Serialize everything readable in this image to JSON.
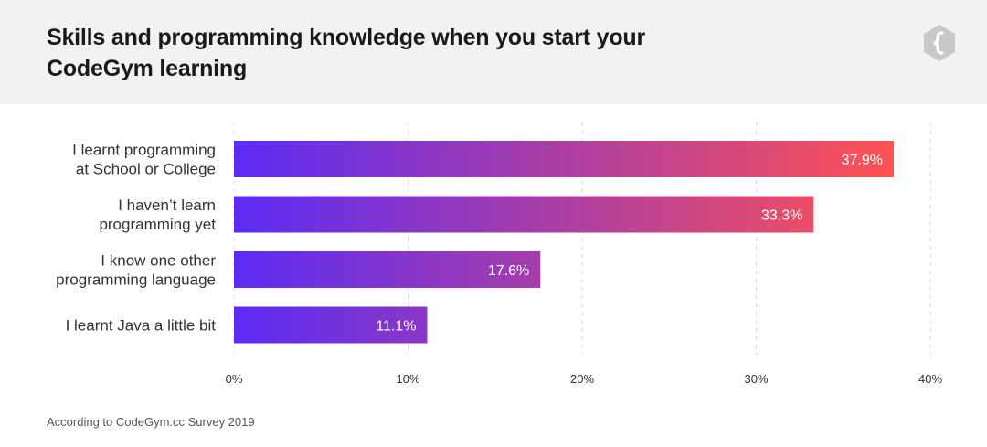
{
  "header": {
    "title": "Skills and programming knowledge when you start your CodeGym learning",
    "logo_icon": "codegym-brace-logo-icon"
  },
  "chart_data": {
    "type": "bar",
    "orientation": "horizontal",
    "categories": [
      [
        "I learnt programming",
        "at School or College"
      ],
      [
        "I haven’t learn",
        "programming yet"
      ],
      [
        "I know one other",
        "programming language"
      ],
      [
        "I learnt Java a little bit"
      ]
    ],
    "values": [
      37.9,
      33.3,
      17.6,
      11.1
    ],
    "value_labels": [
      "37.9%",
      "33.3%",
      "17.6%",
      "11.1%"
    ],
    "x_ticks": [
      "0%",
      "10%",
      "20%",
      "30%",
      "40%"
    ],
    "xlim": [
      0,
      40
    ],
    "grid": true,
    "legend": false,
    "colors": {
      "gradient_start": "#5b2cf5",
      "gradient_end": "#ff5252"
    }
  },
  "footer": {
    "source": "According to CodeGym.cc Survey 2019"
  }
}
